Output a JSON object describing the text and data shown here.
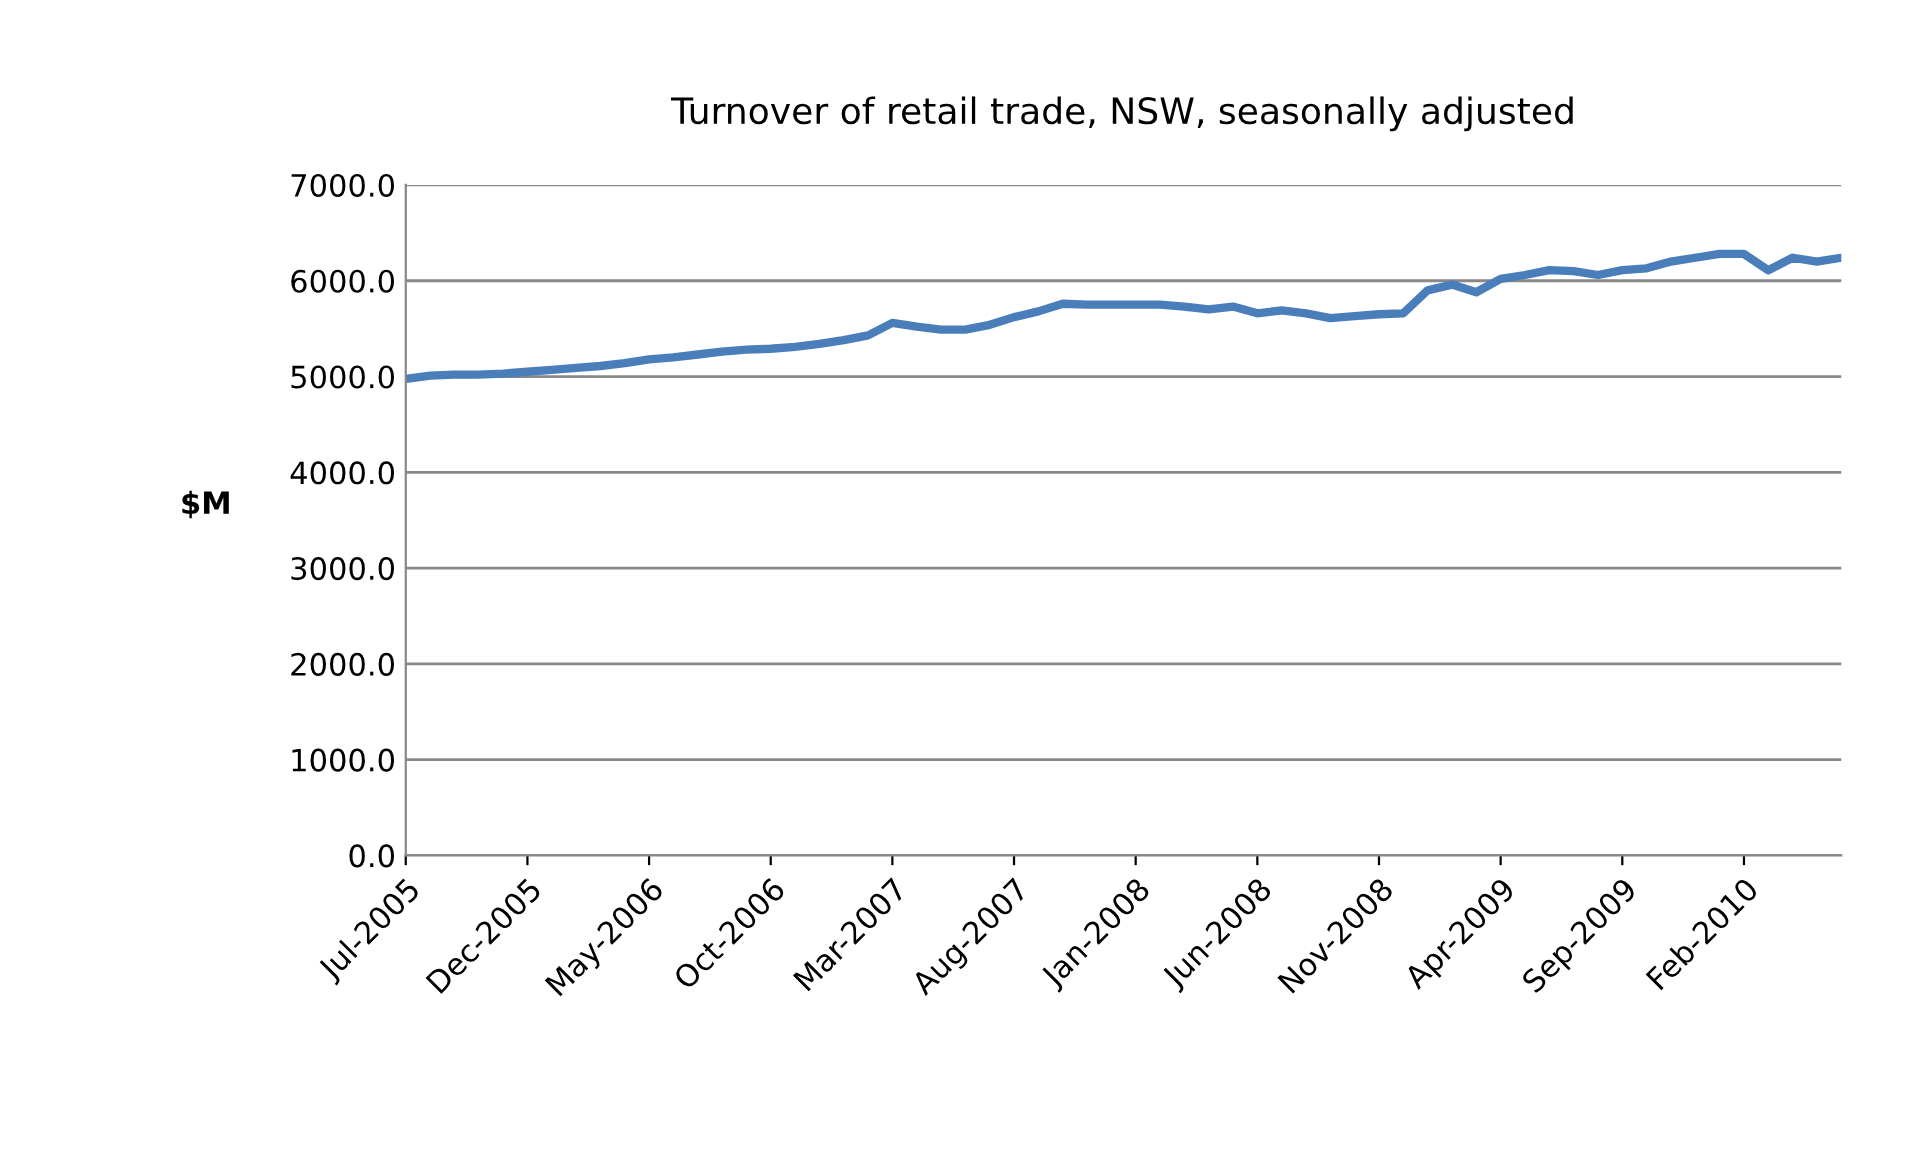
{
  "chart_data": {
    "type": "line",
    "title": "Turnover of retail trade, NSW, seasonally adjusted",
    "ylabel": "$M",
    "categories": [
      "Jul-2005",
      null,
      null,
      null,
      null,
      "Dec-2005",
      null,
      null,
      null,
      null,
      "May-2006",
      null,
      null,
      null,
      null,
      "Oct-2006",
      null,
      null,
      null,
      null,
      "Mar-2007",
      null,
      null,
      null,
      null,
      "Aug-2007",
      null,
      null,
      null,
      null,
      "Jan-2008",
      null,
      null,
      null,
      null,
      "Jun-2008",
      null,
      null,
      null,
      null,
      "Nov-2008",
      null,
      null,
      null,
      null,
      "Apr-2009",
      null,
      null,
      null,
      null,
      "Sep-2009",
      null,
      null,
      null,
      null,
      "Feb-2010",
      null,
      null,
      null,
      null
    ],
    "series": [
      {
        "color": "#4a7ebb",
        "values": [
          4975,
          5010,
          5020,
          5020,
          5030,
          5050,
          5070,
          5090,
          5110,
          5140,
          5180,
          5200,
          5230,
          5260,
          5280,
          5290,
          5310,
          5340,
          5380,
          5430,
          5560,
          5520,
          5490,
          5490,
          5540,
          5620,
          5680,
          5760,
          5750,
          5750,
          5750,
          5750,
          5730,
          5700,
          5730,
          5660,
          5690,
          5660,
          5610,
          5630,
          5650,
          5660,
          5900,
          5960,
          5880,
          6020,
          6060,
          6110,
          6100,
          6060,
          6110,
          6130,
          6200,
          6240,
          6280,
          6280,
          6110,
          6240,
          6200,
          6240
        ]
      }
    ],
    "ylim": [
      0,
      7000
    ],
    "yticks": [
      {
        "value": 0,
        "label": "0.0"
      },
      {
        "value": 1000,
        "label": "1000.0"
      },
      {
        "value": 2000,
        "label": "2000.0"
      },
      {
        "value": 3000,
        "label": "3000.0"
      },
      {
        "value": 4000,
        "label": "4000.0"
      },
      {
        "value": 5000,
        "label": "5000.0"
      },
      {
        "value": 6000,
        "label": "6000.0"
      },
      {
        "value": 7000,
        "label": "7000.0"
      }
    ],
    "grid": "y",
    "marker": "none",
    "line_style": "solid"
  }
}
